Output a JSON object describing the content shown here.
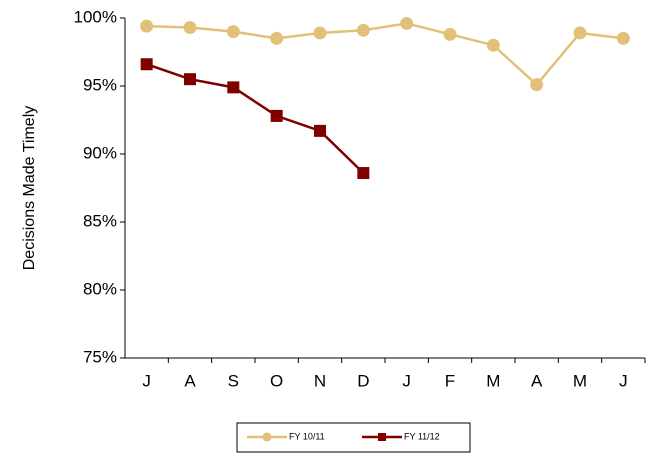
{
  "chart_data": {
    "type": "line",
    "y_label": "Decisions Made Timely",
    "categories": [
      "J",
      "A",
      "S",
      "O",
      "N",
      "D",
      "J",
      "F",
      "M",
      "A",
      "M",
      "J"
    ],
    "series": [
      {
        "name": "FY 10/11",
        "color": "#e3c07a",
        "marker": "circle",
        "values": [
          99.4,
          99.3,
          99.0,
          98.5,
          98.9,
          99.1,
          99.6,
          98.8,
          98.0,
          95.1,
          98.9,
          98.5
        ]
      },
      {
        "name": "FY 11/12",
        "color": "#800000",
        "marker": "square",
        "values": [
          96.6,
          95.5,
          94.9,
          92.8,
          91.7,
          88.6,
          null,
          null,
          null,
          null,
          null,
          null
        ]
      }
    ],
    "ylim": [
      75,
      100
    ],
    "yticks": [
      {
        "value": 75,
        "label": "75%"
      },
      {
        "value": 80,
        "label": "80%"
      },
      {
        "value": 85,
        "label": "85%"
      },
      {
        "value": 90,
        "label": "90%"
      },
      {
        "value": 95,
        "label": "95%"
      },
      {
        "value": 100,
        "label": "100%"
      }
    ],
    "grid": false,
    "legend": "bottom"
  }
}
